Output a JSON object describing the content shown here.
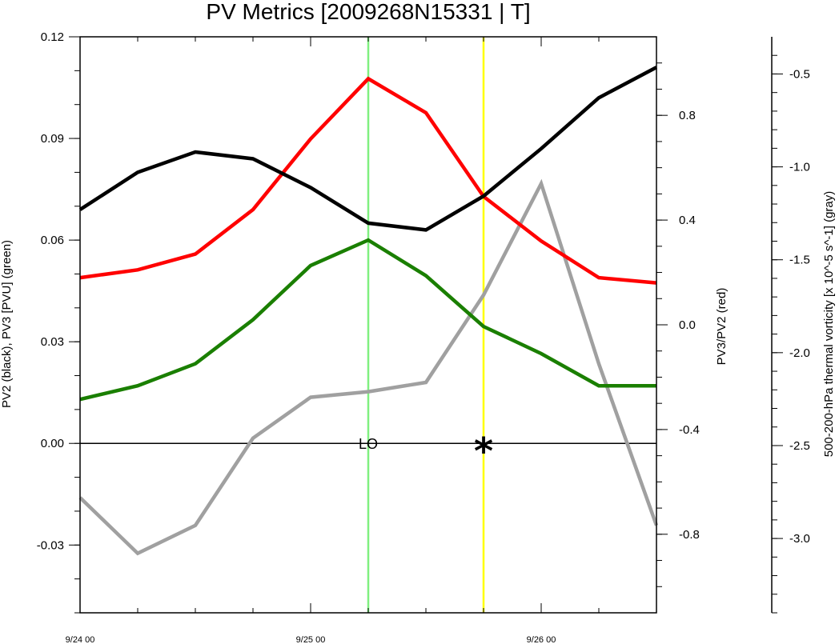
{
  "chart_data": {
    "type": "line",
    "title": "PV Metrics [2009268N15331 | T]",
    "x": [
      "9/24 00",
      "9/24 06",
      "9/24 12",
      "9/24 18",
      "9/25 00",
      "9/25 06",
      "9/25 12",
      "9/25 18",
      "9/26 00",
      "9/26 06",
      "9/26 12"
    ],
    "x_tick_labels": [
      "9/24 00",
      "9/25 00",
      "9/26 00"
    ],
    "left_axis": {
      "label": "PV2 (black), PV3 [PVU] (green)",
      "ylim": [
        -0.05,
        0.12
      ],
      "tick_labels": [
        "-0.03",
        "0.00",
        "0.03",
        "0.06",
        "0.09",
        "0.12"
      ]
    },
    "right_axis_1": {
      "label": "PV3/PV2 (red)",
      "ylim": [
        -1.1,
        1.1
      ],
      "tick_labels": [
        "-0.8",
        "-0.4",
        "0.0",
        "0.4",
        "0.8"
      ]
    },
    "right_axis_2": {
      "label": "500-200-hPa thermal vorticity [x 10^-5 s^-1] (gray)",
      "ylim": [
        -3.4,
        -0.3
      ],
      "tick_labels": [
        "-3.0",
        "-2.5",
        "-2.0",
        "-1.5",
        "-1.0",
        "-0.5"
      ]
    },
    "series": [
      {
        "name": "PV2 (black)",
        "axis": "left",
        "color": "#000000",
        "values": [
          0.069,
          0.08,
          0.086,
          0.084,
          0.0755,
          0.065,
          0.063,
          0.073,
          0.087,
          0.102,
          0.111
        ]
      },
      {
        "name": "PV3 (green)",
        "axis": "left",
        "color": "#1a7f00",
        "values": [
          0.013,
          0.017,
          0.0235,
          0.0365,
          0.0525,
          0.06,
          0.0495,
          0.0345,
          0.0265,
          0.017,
          0.017
        ]
      },
      {
        "name": "PV3/PV2 (red)",
        "axis": "right_1",
        "color": "#ff0000",
        "values": [
          0.18,
          0.21,
          0.27,
          0.44,
          0.71,
          0.94,
          0.81,
          0.49,
          0.32,
          0.18,
          0.16
        ]
      },
      {
        "name": "thermal vorticity (gray)",
        "axis": "right_2",
        "color": "#a0a0a0",
        "values": [
          -2.78,
          -3.08,
          -2.93,
          -2.46,
          -2.24,
          -2.21,
          -2.16,
          -1.69,
          -1.09,
          -2.06,
          -2.93
        ]
      }
    ],
    "reference_lines": [
      {
        "x": "9/25 06",
        "color": "#80f080"
      },
      {
        "x": "9/25 18",
        "color": "#ffff00"
      }
    ],
    "annotations": [
      {
        "text": "LO",
        "x": "9/25 06",
        "y": 0.0
      },
      {
        "text": "*",
        "x": "9/25 18",
        "y": 0.0
      }
    ],
    "grid": false
  }
}
